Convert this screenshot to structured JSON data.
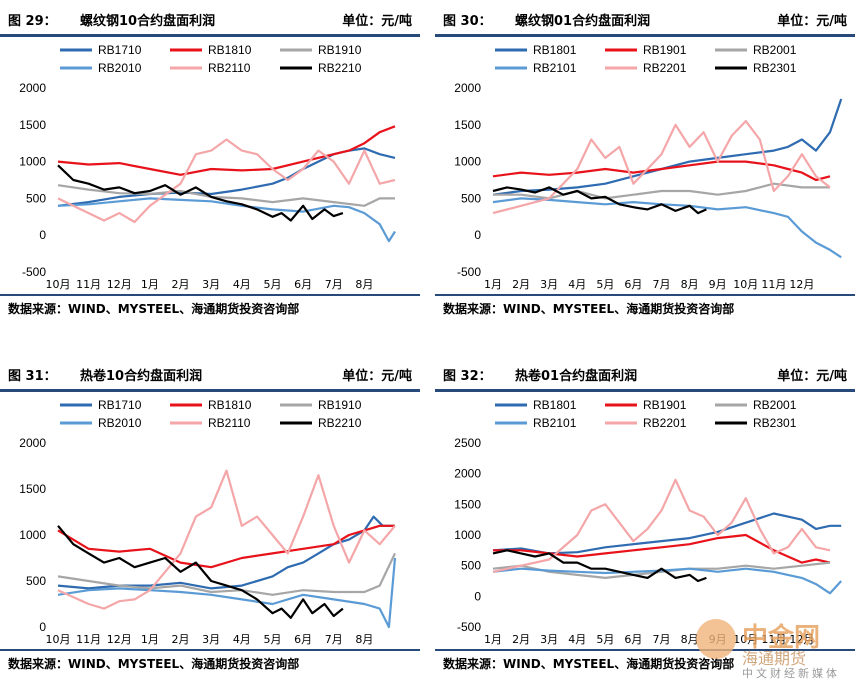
{
  "source_text": "数据来源：WIND、MYSTEEL、海通期货投资咨询部",
  "watermark": {
    "big": "中金网",
    "line2": "海通期货",
    "small": "中文财经新媒体"
  },
  "colors": {
    "blue_dark": "#2e6bb0",
    "red": "#e8121a",
    "grey": "#a6a6a6",
    "blue_light": "#5b9bd5",
    "pink": "#f4a6a8",
    "black": "#000000"
  },
  "chart_data": [
    {
      "figure": "图 29：",
      "title": "螺纹钢10合约盘面利润",
      "unit": "单位：元/吨",
      "type": "line",
      "x_labels": [
        "10月",
        "11月",
        "12月",
        "1月",
        "2月",
        "3月",
        "4月",
        "5月",
        "6月",
        "7月",
        "8月"
      ],
      "y_ticks": [
        -500,
        0,
        500,
        1000,
        1500,
        2000
      ],
      "ylim": [
        -500,
        2000
      ],
      "series": [
        {
          "name": "RB1710",
          "color": "blue_dark",
          "x": [
            0,
            1,
            2,
            3,
            4,
            5,
            6,
            7,
            7.5,
            8,
            8.5,
            9,
            9.5,
            10,
            10.5,
            11
          ],
          "y": [
            400,
            450,
            520,
            560,
            580,
            560,
            620,
            700,
            780,
            900,
            1000,
            1100,
            1150,
            1180,
            1100,
            1050
          ]
        },
        {
          "name": "RB1810",
          "color": "red",
          "x": [
            0,
            1,
            2,
            3,
            4,
            5,
            6,
            7,
            8,
            9,
            9.5,
            10,
            10.5,
            11
          ],
          "y": [
            1000,
            960,
            980,
            900,
            820,
            900,
            880,
            900,
            1000,
            1100,
            1150,
            1250,
            1400,
            1480
          ]
        },
        {
          "name": "RB1910",
          "color": "grey",
          "x": [
            0,
            1,
            2,
            3,
            4,
            5,
            6,
            7,
            8,
            9,
            10,
            10.5,
            11
          ],
          "y": [
            680,
            620,
            570,
            560,
            600,
            520,
            500,
            450,
            500,
            450,
            400,
            500,
            500
          ]
        },
        {
          "name": "RB2010",
          "color": "blue_light",
          "x": [
            0,
            1,
            2,
            3,
            4,
            5,
            6,
            7,
            8,
            9,
            9.5,
            10,
            10.5,
            10.8,
            11
          ],
          "y": [
            400,
            420,
            460,
            500,
            480,
            460,
            400,
            350,
            320,
            400,
            380,
            300,
            150,
            -80,
            50
          ]
        },
        {
          "name": "RB2110",
          "color": "pink",
          "x": [
            0,
            1,
            1.5,
            2,
            2.5,
            3,
            4,
            4.5,
            5,
            5.5,
            6,
            6.5,
            7,
            7.5,
            8,
            8.5,
            9,
            9.5,
            10,
            10.5,
            11
          ],
          "y": [
            500,
            300,
            200,
            300,
            180,
            400,
            700,
            1100,
            1150,
            1300,
            1150,
            1100,
            900,
            750,
            900,
            1150,
            1000,
            700,
            1150,
            700,
            750
          ]
        },
        {
          "name": "RB2210",
          "color": "black",
          "x": [
            0,
            0.5,
            1,
            1.5,
            2,
            2.5,
            3,
            3.5,
            4,
            4.5,
            5,
            5.5,
            6,
            6.5,
            7,
            7.3,
            7.6,
            8,
            8.3,
            8.7,
            9,
            9.3
          ],
          "y": [
            950,
            750,
            700,
            620,
            650,
            570,
            600,
            680,
            550,
            650,
            520,
            460,
            420,
            350,
            250,
            300,
            200,
            400,
            220,
            350,
            260,
            300
          ]
        }
      ]
    },
    {
      "figure": "图 30：",
      "title": "螺纹钢01合约盘面利润",
      "unit": "单位：元/吨",
      "type": "line",
      "x_labels": [
        "1月",
        "2月",
        "3月",
        "4月",
        "5月",
        "6月",
        "7月",
        "8月",
        "9月",
        "10月",
        "11月",
        "12月"
      ],
      "y_ticks": [
        -500,
        0,
        500,
        1000,
        1500,
        2000
      ],
      "ylim": [
        -500,
        2000
      ],
      "series": [
        {
          "name": "RB1801",
          "color": "blue_dark",
          "x": [
            0,
            1,
            2,
            3,
            4,
            5,
            6,
            7,
            8,
            9,
            10,
            10.5,
            11,
            11.5,
            12,
            12.4
          ],
          "y": [
            550,
            600,
            620,
            650,
            700,
            800,
            900,
            1000,
            1050,
            1100,
            1150,
            1200,
            1300,
            1150,
            1400,
            1850
          ]
        },
        {
          "name": "RB1901",
          "color": "red",
          "x": [
            0,
            1,
            2,
            3,
            4,
            5,
            6,
            7,
            8,
            9,
            10,
            10.5,
            11,
            11.5,
            12
          ],
          "y": [
            800,
            850,
            820,
            850,
            900,
            850,
            900,
            950,
            1000,
            1000,
            950,
            900,
            850,
            750,
            800
          ]
        },
        {
          "name": "RB2001",
          "color": "grey",
          "x": [
            0,
            1,
            2,
            3,
            4,
            5,
            6,
            7,
            8,
            9,
            10,
            11,
            12
          ],
          "y": [
            550,
            550,
            500,
            600,
            500,
            550,
            600,
            600,
            550,
            600,
            700,
            650,
            650
          ]
        },
        {
          "name": "RB2101",
          "color": "blue_light",
          "x": [
            0,
            1,
            2,
            3,
            4,
            5,
            6,
            7,
            8,
            9,
            10,
            10.5,
            11,
            11.5,
            12,
            12.4
          ],
          "y": [
            450,
            500,
            480,
            450,
            420,
            450,
            420,
            400,
            350,
            380,
            300,
            250,
            50,
            -100,
            -200,
            -300
          ]
        },
        {
          "name": "RB2201",
          "color": "pink",
          "x": [
            0,
            1,
            2,
            3,
            3.5,
            4,
            4.5,
            5,
            5.5,
            6,
            6.5,
            7,
            7.5,
            8,
            8.5,
            9,
            9.5,
            10,
            10.5,
            11,
            11.5,
            12
          ],
          "y": [
            300,
            400,
            500,
            900,
            1300,
            1050,
            1200,
            700,
            900,
            1100,
            1500,
            1200,
            1400,
            1000,
            1350,
            1550,
            1300,
            600,
            800,
            1100,
            800,
            650
          ]
        },
        {
          "name": "RB2301",
          "color": "black",
          "x": [
            0,
            0.5,
            1,
            1.5,
            2,
            2.5,
            3,
            3.5,
            4,
            4.5,
            5,
            5.5,
            6,
            6.5,
            7,
            7.3,
            7.6
          ],
          "y": [
            600,
            650,
            620,
            580,
            650,
            550,
            600,
            500,
            520,
            420,
            380,
            350,
            420,
            330,
            400,
            300,
            350
          ]
        }
      ]
    },
    {
      "figure": "图 31：",
      "title": "热卷10合约盘面利润",
      "unit": "单位：元/吨",
      "type": "line",
      "x_labels": [
        "10月",
        "11月",
        "12月",
        "1月",
        "2月",
        "3月",
        "4月",
        "5月",
        "6月",
        "7月",
        "8月"
      ],
      "y_ticks": [
        0,
        500,
        1000,
        1500,
        2000
      ],
      "ylim": [
        0,
        2000
      ],
      "series": [
        {
          "name": "RB1710",
          "color": "blue_dark",
          "x": [
            0,
            1,
            2,
            3,
            4,
            5,
            6,
            7,
            7.5,
            8,
            8.5,
            9,
            9.5,
            10,
            10.3,
            10.6,
            11
          ],
          "y": [
            450,
            420,
            450,
            450,
            480,
            420,
            450,
            550,
            650,
            700,
            800,
            900,
            950,
            1050,
            1200,
            1100,
            1100
          ]
        },
        {
          "name": "RB1810",
          "color": "red",
          "x": [
            0,
            1,
            2,
            3,
            4,
            5,
            6,
            7,
            8,
            9,
            9.5,
            10,
            10.5,
            11
          ],
          "y": [
            1050,
            850,
            820,
            850,
            700,
            650,
            750,
            800,
            850,
            900,
            1000,
            1050,
            1100,
            1100
          ]
        },
        {
          "name": "RB1910",
          "color": "grey",
          "x": [
            0,
            1,
            2,
            3,
            4,
            5,
            6,
            7,
            8,
            9,
            10,
            10.5,
            11
          ],
          "y": [
            550,
            500,
            450,
            420,
            450,
            380,
            400,
            350,
            400,
            380,
            380,
            450,
            800
          ]
        },
        {
          "name": "RB2010",
          "color": "blue_light",
          "x": [
            0,
            1,
            2,
            3,
            4,
            5,
            6,
            7,
            8,
            9,
            10,
            10.5,
            10.8,
            11
          ],
          "y": [
            350,
            400,
            420,
            400,
            380,
            350,
            300,
            250,
            350,
            300,
            250,
            200,
            0,
            750
          ]
        },
        {
          "name": "RB2110",
          "color": "pink",
          "x": [
            0,
            1,
            1.5,
            2,
            2.5,
            3,
            4,
            4.5,
            5,
            5.5,
            6,
            6.5,
            7,
            7.5,
            8,
            8.5,
            9,
            9.5,
            10,
            10.5,
            11
          ],
          "y": [
            400,
            250,
            200,
            280,
            300,
            400,
            800,
            1200,
            1300,
            1700,
            1100,
            1200,
            1000,
            800,
            1200,
            1650,
            1100,
            700,
            1050,
            900,
            1100
          ]
        },
        {
          "name": "RB2210",
          "color": "black",
          "x": [
            0,
            0.5,
            1,
            1.5,
            2,
            2.5,
            3,
            3.5,
            4,
            4.5,
            5,
            5.5,
            6,
            6.5,
            7,
            7.3,
            7.6,
            8,
            8.3,
            8.7,
            9,
            9.3
          ],
          "y": [
            1100,
            900,
            800,
            700,
            750,
            650,
            700,
            750,
            600,
            700,
            500,
            450,
            400,
            300,
            150,
            200,
            100,
            300,
            150,
            250,
            120,
            200
          ]
        }
      ]
    },
    {
      "figure": "图 32：",
      "title": "热卷01合约盘面利润",
      "unit": "单位：元/吨",
      "type": "line",
      "x_labels": [
        "1月",
        "2月",
        "3月",
        "4月",
        "5月",
        "6月",
        "7月",
        "8月",
        "9月",
        "10月",
        "11月",
        "12月"
      ],
      "y_ticks": [
        -500,
        0,
        500,
        1000,
        1500,
        2000,
        2500
      ],
      "ylim": [
        -500,
        2500
      ],
      "series": [
        {
          "name": "RB1801",
          "color": "blue_dark",
          "x": [
            0,
            1,
            2,
            3,
            4,
            5,
            6,
            7,
            8,
            9,
            10,
            10.5,
            11,
            11.5,
            12,
            12.4
          ],
          "y": [
            750,
            780,
            700,
            720,
            800,
            850,
            900,
            950,
            1050,
            1200,
            1350,
            1300,
            1250,
            1100,
            1150,
            1150
          ]
        },
        {
          "name": "RB1901",
          "color": "red",
          "x": [
            0,
            1,
            2,
            3,
            4,
            5,
            6,
            7,
            8,
            9,
            10,
            10.5,
            11,
            11.5,
            12
          ],
          "y": [
            750,
            750,
            700,
            650,
            700,
            750,
            800,
            850,
            950,
            1000,
            750,
            650,
            550,
            600,
            550
          ]
        },
        {
          "name": "RB2001",
          "color": "grey",
          "x": [
            0,
            1,
            2,
            3,
            4,
            5,
            6,
            7,
            8,
            9,
            10,
            11,
            12
          ],
          "y": [
            450,
            500,
            400,
            350,
            300,
            350,
            400,
            450,
            450,
            500,
            450,
            500,
            550
          ]
        },
        {
          "name": "RB2101",
          "color": "blue_light",
          "x": [
            0,
            1,
            2,
            3,
            4,
            5,
            6,
            7,
            8,
            9,
            10,
            10.5,
            11,
            11.5,
            12,
            12.4
          ],
          "y": [
            400,
            450,
            420,
            400,
            380,
            400,
            420,
            450,
            400,
            450,
            400,
            350,
            300,
            200,
            50,
            250
          ]
        },
        {
          "name": "RB2201",
          "color": "pink",
          "x": [
            0,
            1,
            2,
            3,
            3.5,
            4,
            4.5,
            5,
            5.5,
            6,
            6.5,
            7,
            7.5,
            8,
            8.5,
            9,
            9.5,
            10,
            10.5,
            11,
            11.5,
            12
          ],
          "y": [
            400,
            500,
            600,
            1000,
            1400,
            1500,
            1200,
            900,
            1100,
            1400,
            1900,
            1400,
            1300,
            1000,
            1200,
            1600,
            1100,
            700,
            800,
            1100,
            800,
            750
          ]
        },
        {
          "name": "RB2301",
          "color": "black",
          "x": [
            0,
            0.5,
            1,
            1.5,
            2,
            2.5,
            3,
            3.5,
            4,
            4.5,
            5,
            5.5,
            6,
            6.5,
            7,
            7.3,
            7.6
          ],
          "y": [
            700,
            750,
            700,
            650,
            700,
            550,
            550,
            450,
            450,
            400,
            350,
            300,
            450,
            300,
            350,
            250,
            300
          ]
        }
      ]
    }
  ]
}
